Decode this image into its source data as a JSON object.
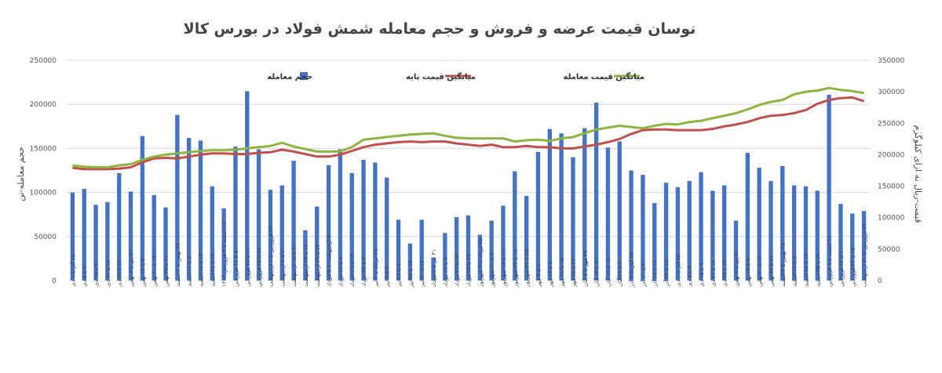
{
  "chart_data": {
    "type": "bar+line",
    "title": "نوسان قیمت عرضه و فروش و حجم معامله شمش فولاد در بورس کالا",
    "ylabel_left": "حجم معامله-تن",
    "ylabel_right": "قیمت-ریال به ازای کیلوگرم",
    "ylim_left": [
      0,
      250000
    ],
    "ylim_right": [
      0,
      350000
    ],
    "yticks_left": [
      "0",
      "50000",
      "100000",
      "150000",
      "200000",
      "250000"
    ],
    "yticks_right": [
      "0",
      "50000",
      "100000",
      "150000",
      "200000",
      "250000",
      "300000",
      "350000"
    ],
    "legend_position": "top",
    "grid": "horizontal",
    "colors": {
      "bars": "#4472c4",
      "base": "#c0504d",
      "trade": "#8db441"
    },
    "categories": [
      "۲۵ آذر تا ۱ دی",
      "۲ تا ۸ دی",
      "۹ تا ۱۵ دی",
      "۱۶ تا ۲۲ دی",
      "۲۳ تا ۲۹ دی",
      "۳۰ دی تا ۶ بهمن",
      "۷ تا ۱۳ بهمن",
      "۱۴ تا ۲۰ بهمن",
      "۲۱ تا ۲۷ بهمن",
      "۲۸ بهمن تا ۴ اسفند",
      "۵ تا ۱۱ اسفند",
      "۱۲ تا ۱۸ اسفند",
      "۱۹ تا ۲۵ اسفند",
      "۲۶ اسفند تا ۴ فروردین ۱۴۰۳",
      "۵ تا ۱۱ فروردین",
      "۱۲ تا ۱۸ فروردین",
      "۱۹ تا ۲۵ فروردین",
      "۲۶ فروردین تا ۱ اردیبهشت",
      "۲ تا ۸ اردیبهشت",
      "۹ تا ۱۵ اردیبهشت",
      "۱۶ تا ۲۲ اردیبهشت",
      "۲۳ تا ۲۹ اردیبهشت",
      "۳۰ اردیبهشت تا ۵ خرداد",
      "۶ تا ۱۲ خرداد",
      "۱۳ تا ۱۹ خرداد",
      "۲۰ تا ۲۶ خرداد",
      "۲۷ خرداد تا ۲ تیر",
      "۳ تا ۹ تیر",
      "۱۰ تا ۱۶ تیر",
      "۱۷ تا ۲۳ تیر",
      "۲۴ تا ۳۰ تیر",
      "۳۱ تیر تا ۶ مرداد",
      "۷ تا ۱۳ مرداد",
      "۱۴ تا ۲۰ مرداد",
      "۲۱ تا ۲۷ مرداد",
      "۲۸ مرداد تا ۳ شهریور",
      "۴ تا ۱۰ شهریور",
      "۱۱ تا ۱۷ شهریور",
      "۱۸ تا ۲۴ شهریور",
      "۲۵ تا ۳۱ شهریور",
      "۱ تا ۷ مهر",
      "۸ تا ۱۴ مهر",
      "۱۵ تا ۲۱ مهر",
      "۲۲ تا ۲۸ مهر",
      "۲۹ مهر تا ۵ آبان",
      "۶ تا ۱۲ آبان",
      "۱۳ تا ۱۹ آبان",
      "۲۰ تا ۲۶ آبان",
      "۲۷ آبان تا ۳ آذر",
      "۴ تا ۱۰ آذر",
      "۱۱ تا ۱۷ آذر",
      "۱۸ تا ۲۴ آذر",
      "۲۵ آذر تا ۱ دی",
      "۲ تا ۸ دی",
      "۹ تا ۱۵ دی",
      "۱۶ تا ۲۲ دی",
      "۲۳ تا ۲۹ دی",
      "۳۰ دی تا ۶ بهمن",
      "۷ تا ۱۳ بهمن",
      "۱۴ تا ۲۰ بهمن",
      "۲۱ تا ۲۷ بهمن",
      "۲۸ بهمن تا ۴ اسفند",
      "۵ تا ۱۱ اسفند",
      "۱۲ تا ۱۸ اسفند",
      "۱۹ تا ۲۵ اسفند",
      "۲۶ اسفند تا ۹ فروردین",
      "۱۰ تا ۱۶ فروردین",
      "۱۷ تا ۲۳ فروردین",
      "۲۴ فروردین تا ۳۰ اردیبهشت"
    ],
    "series": [
      {
        "name": "حجم معامله",
        "type": "bar",
        "axis": "left",
        "values": [
          100000,
          104000,
          86000,
          89000,
          122000,
          101000,
          164000,
          97000,
          83000,
          188000,
          162000,
          159000,
          107000,
          82000,
          152000,
          215000,
          149000,
          103000,
          108000,
          136000,
          57000,
          84000,
          131000,
          149000,
          122000,
          137000,
          134000,
          117000,
          69000,
          42000,
          69000,
          26000,
          54000,
          72000,
          74000,
          52000,
          68000,
          85000,
          124000,
          96000,
          146000,
          172000,
          167000,
          140000,
          173000,
          202000,
          151000,
          158000,
          125000,
          120000,
          88000,
          111000,
          106000,
          113000,
          123000,
          102000,
          108000,
          68000,
          145000,
          128000,
          113000,
          130000,
          108000,
          107000,
          102000,
          211000,
          87000,
          76000,
          79000
        ]
      },
      {
        "name": "میانگین قیمت پایه",
        "type": "line",
        "axis": "right",
        "values": [
          179000,
          177000,
          177000,
          177000,
          178000,
          180000,
          188000,
          194000,
          195000,
          194000,
          197000,
          200000,
          202000,
          202000,
          201000,
          201000,
          203000,
          204000,
          208000,
          205000,
          201000,
          197000,
          197000,
          200000,
          206000,
          212000,
          216000,
          218000,
          220000,
          221000,
          220000,
          221000,
          221000,
          218000,
          216000,
          214000,
          216000,
          212000,
          212000,
          214000,
          212000,
          212000,
          210000,
          210000,
          213000,
          216000,
          220000,
          225000,
          233000,
          239000,
          240000,
          240000,
          239000,
          239000,
          239000,
          241000,
          245000,
          248000,
          252000,
          258000,
          262000,
          263000,
          266000,
          271000,
          281000,
          287000,
          290000,
          291000,
          285000
        ]
      },
      {
        "name": "میانگین قیمت معامله",
        "type": "line",
        "axis": "right",
        "values": [
          183000,
          181000,
          180000,
          180000,
          183000,
          185000,
          192000,
          197000,
          200000,
          202000,
          204000,
          206000,
          207000,
          207000,
          208000,
          210000,
          212000,
          214000,
          219000,
          213000,
          209000,
          205000,
          205000,
          205000,
          212000,
          224000,
          226000,
          228000,
          230000,
          232000,
          233000,
          234000,
          230000,
          227000,
          226000,
          226000,
          226000,
          226000,
          221000,
          223000,
          224000,
          222000,
          226000,
          228000,
          234000,
          240000,
          243000,
          246000,
          244000,
          242000,
          246000,
          249000,
          248000,
          252000,
          254000,
          258000,
          262000,
          266000,
          272000,
          279000,
          284000,
          287000,
          296000,
          300000,
          302000,
          306000,
          303000,
          301000,
          298000
        ]
      }
    ]
  }
}
